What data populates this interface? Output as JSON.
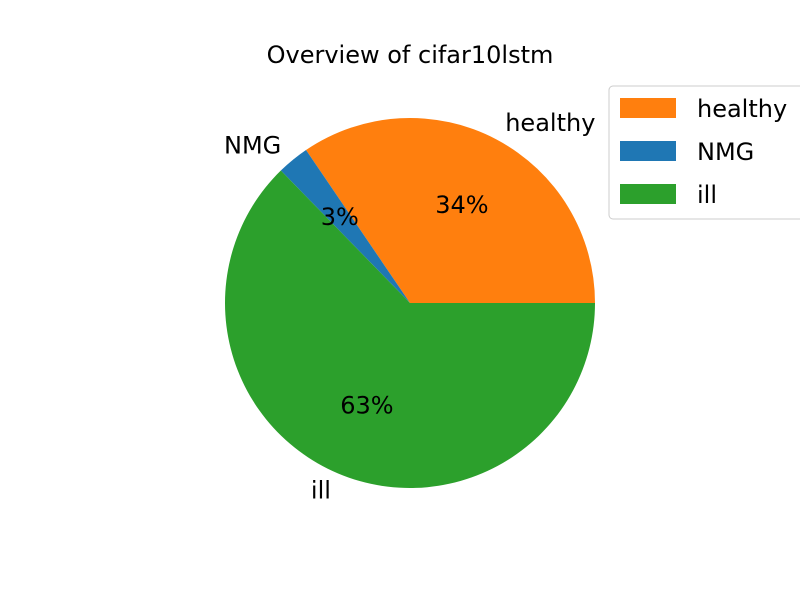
{
  "chart_data": {
    "type": "pie",
    "title": "Overview of cifar10lstm",
    "start_angle_deg": 0,
    "direction": "counterclockwise",
    "slices": [
      {
        "label": "healthy",
        "value": 34.5,
        "pct_label": "34%",
        "color": "#ff7f0e"
      },
      {
        "label": "NMG",
        "value": 2.8,
        "pct_label": "3%",
        "color": "#1f77b4"
      },
      {
        "label": "ill",
        "value": 62.7,
        "pct_label": "63%",
        "color": "#2ca02c"
      }
    ],
    "legend": {
      "placement": "top-right",
      "entries": [
        "healthy",
        "NMG",
        "ill"
      ]
    }
  }
}
